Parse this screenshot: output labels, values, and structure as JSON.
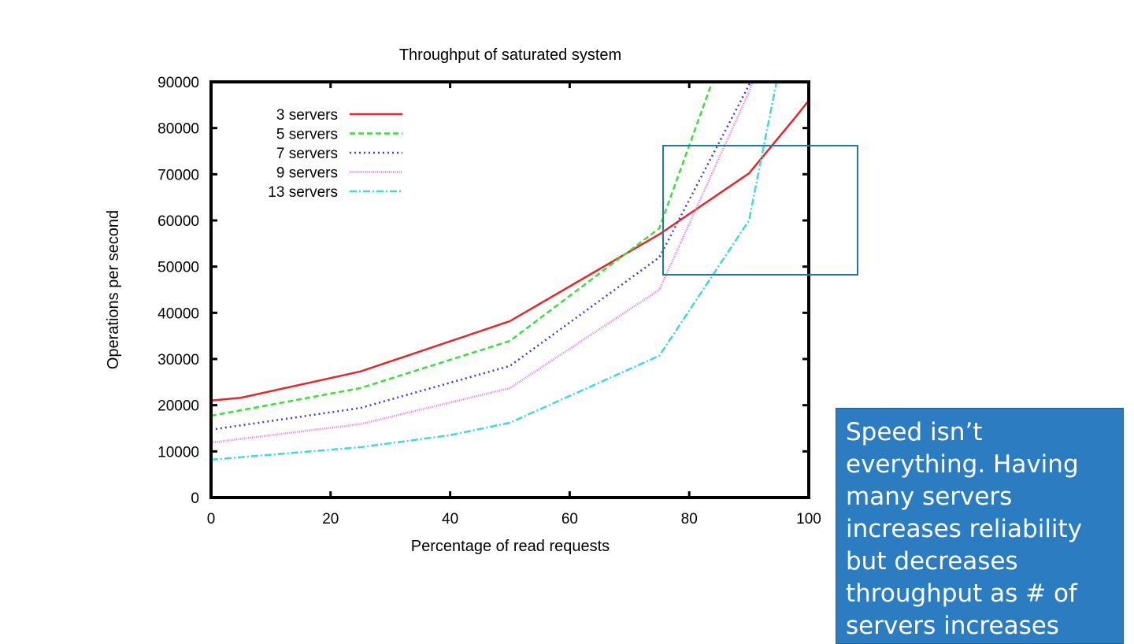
{
  "chart_data": {
    "type": "line",
    "title": "Throughput of saturated system",
    "xlabel": "Percentage of read requests",
    "ylabel": "Operations per second",
    "xlim": [
      0,
      100
    ],
    "ylim": [
      0,
      90000
    ],
    "xticks": [
      0,
      20,
      40,
      60,
      80,
      100
    ],
    "yticks": [
      0,
      10000,
      20000,
      30000,
      40000,
      50000,
      60000,
      70000,
      80000,
      90000
    ],
    "legend_position": "top-left",
    "grid": false,
    "series": [
      {
        "name": "3 servers",
        "color": "#e8252b",
        "dash": "",
        "x": [
          0,
          5,
          25,
          50,
          75,
          90,
          98,
          100
        ],
        "y": [
          21000,
          21600,
          27300,
          38200,
          57000,
          70200,
          82700,
          86000
        ]
      },
      {
        "name": "5 servers",
        "color": "#3ddc3d",
        "dash": "7,4",
        "x": [
          0,
          25,
          50,
          75,
          90
        ],
        "y": [
          17700,
          23700,
          33900,
          58300,
          112000
        ]
      },
      {
        "name": "7 servers",
        "color": "#3c3ccc",
        "dash": "2,4",
        "x": [
          0,
          25,
          50,
          75,
          90,
          100
        ],
        "y": [
          14700,
          19400,
          28500,
          52000,
          89300,
          120000
        ]
      },
      {
        "name": "9 servers",
        "color": "#e070e0",
        "dash": "1,1.5",
        "x": [
          0,
          25,
          50,
          75,
          90,
          100
        ],
        "y": [
          11900,
          15900,
          23700,
          45000,
          87800,
          125000
        ]
      },
      {
        "name": "13 servers",
        "color": "#3fd8e0",
        "dash": "9,3,2,3",
        "x": [
          0,
          25,
          40,
          50,
          75,
          90,
          100
        ],
        "y": [
          8200,
          10900,
          13500,
          16200,
          30700,
          60000,
          125000
        ]
      }
    ]
  },
  "callout": {
    "text": "Speed isn’t everything. Having many servers increases reliability but decreases throughput as # of servers increases"
  },
  "colors": {
    "callout_bg": "#2b7cc0",
    "highlight_stroke": "#2277a5"
  }
}
